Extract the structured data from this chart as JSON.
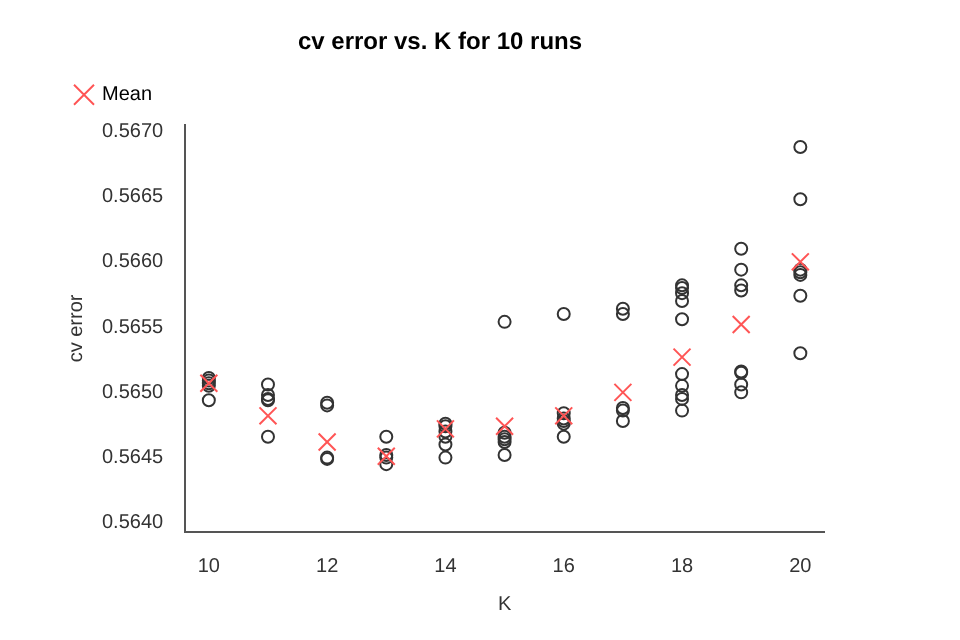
{
  "chart_data": {
    "type": "scatter",
    "title": "cv error vs. K for 10 runs",
    "xlabel": "K",
    "ylabel": "cv error",
    "xlim": [
      9.6,
      20.4
    ],
    "xticks": [
      10,
      12,
      14,
      16,
      18,
      20
    ],
    "ylim": [
      0.56393,
      0.56705
    ],
    "yticks": [
      {
        "value": 0.564,
        "label": "0.5640"
      },
      {
        "value": 0.5645,
        "label": "0.5645"
      },
      {
        "value": 0.565,
        "label": "0.5650"
      },
      {
        "value": 0.5655,
        "label": "0.5655"
      },
      {
        "value": 0.566,
        "label": "0.5660"
      },
      {
        "value": 0.5665,
        "label": "0.5665"
      },
      {
        "value": 0.567,
        "label": "0.5670"
      }
    ],
    "grid": false,
    "legend": "top left",
    "series": [
      {
        "color": "#333333",
        "marker": "circle",
        "x": [
          10,
          10,
          10,
          10,
          10,
          11,
          11,
          11,
          11,
          11,
          12,
          12,
          12,
          12,
          13,
          13,
          13,
          13,
          14,
          14,
          14,
          14,
          14,
          14,
          15,
          15,
          15,
          15,
          15,
          15,
          16,
          16,
          16,
          16,
          16,
          16,
          17,
          17,
          17,
          17,
          17,
          18,
          18,
          18,
          18,
          18,
          18,
          18,
          18,
          18,
          18,
          19,
          19,
          19,
          19,
          19,
          19,
          19,
          19,
          20,
          20,
          20,
          20,
          20,
          20,
          20
        ],
        "values": [
          0.56511,
          0.56509,
          0.56507,
          0.56505,
          0.56494,
          0.56506,
          0.56498,
          0.56495,
          0.56494,
          0.56466,
          0.56492,
          0.5649,
          0.5645,
          0.56449,
          0.56466,
          0.56452,
          0.5645,
          0.56445,
          0.56476,
          0.56474,
          0.5647,
          0.56466,
          0.5646,
          0.5645,
          0.56554,
          0.56469,
          0.56466,
          0.56464,
          0.56462,
          0.56452,
          0.5656,
          0.56484,
          0.5648,
          0.56478,
          0.56476,
          0.56466,
          0.56564,
          0.5656,
          0.56488,
          0.56486,
          0.56478,
          0.56582,
          0.5658,
          0.56576,
          0.5657,
          0.56556,
          0.56514,
          0.56505,
          0.56498,
          0.56495,
          0.56486,
          0.5661,
          0.56594,
          0.56582,
          0.56578,
          0.56516,
          0.56515,
          0.56506,
          0.565,
          0.56688,
          0.56648,
          0.56594,
          0.56592,
          0.5659,
          0.56574,
          0.5653
        ]
      },
      {
        "name": "Mean",
        "color": "#ff5555",
        "marker": "cross",
        "x": [
          10,
          11,
          12,
          13,
          14,
          15,
          16,
          17,
          18,
          19,
          20
        ],
        "values": [
          0.56507,
          0.56482,
          0.56462,
          0.56451,
          0.56472,
          0.56474,
          0.56482,
          0.565,
          0.56527,
          0.56552,
          0.566
        ]
      }
    ]
  }
}
